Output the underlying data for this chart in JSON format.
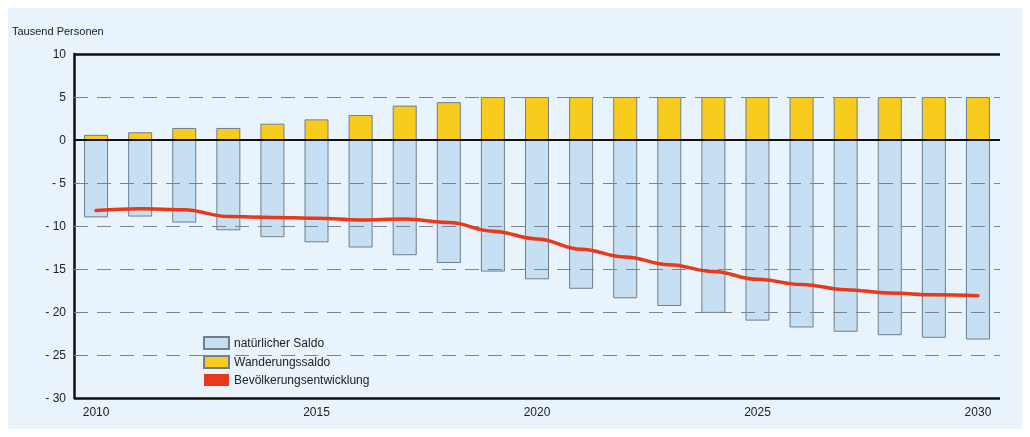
{
  "chart_data": {
    "type": "bar",
    "ylabel": "Tausend Personen",
    "categories": [
      "2010",
      null,
      null,
      null,
      null,
      "2015",
      null,
      null,
      null,
      null,
      "2020",
      null,
      null,
      null,
      null,
      "2025",
      null,
      null,
      null,
      null,
      "2030"
    ],
    "stacked": true,
    "series": [
      {
        "name": "natürlicher Saldo",
        "color": "#c6dff2",
        "values": [
          -9,
          -8.9,
          -9.6,
          -10.5,
          -11.3,
          -11.9,
          -12.5,
          -13.4,
          -14.3,
          -15.3,
          -16.2,
          -17.3,
          -18.4,
          -19.3,
          -20.1,
          -21,
          -21.8,
          -22.3,
          -22.7,
          -23,
          -23.2
        ]
      },
      {
        "name": "Wanderungssaldo",
        "color": "#f8cc1c",
        "values": [
          0.6,
          0.9,
          1.4,
          1.4,
          1.9,
          2.4,
          2.9,
          4,
          4.4,
          5,
          5,
          5,
          5,
          5,
          5,
          5,
          5,
          5,
          5,
          5,
          5
        ]
      },
      {
        "name": "Bevölkerungsentwicklung",
        "type": "line",
        "color": "#e8391a",
        "values": [
          -8.2,
          -8,
          -8.1,
          -8.9,
          -9,
          -9.1,
          -9.3,
          -9.2,
          -9.6,
          -10.6,
          -11.5,
          -12.7,
          -13.6,
          -14.5,
          -15.3,
          -16.2,
          -16.8,
          -17.4,
          -17.8,
          -18,
          -18.1
        ]
      }
    ],
    "ylim": [
      -30,
      10
    ],
    "yticks": [
      10,
      5,
      0,
      {
        "value": -5,
        "label": "- 5"
      },
      {
        "value": -10,
        "label": "- 10"
      },
      {
        "value": -15,
        "label": "- 15"
      },
      {
        "value": -20,
        "label": "- 20"
      },
      {
        "value": -25,
        "label": "- 25"
      },
      {
        "value": -30,
        "label": "- 30"
      }
    ],
    "grid": "y",
    "legend": "bottom left",
    "marker": "none",
    "line_style": "solid"
  }
}
